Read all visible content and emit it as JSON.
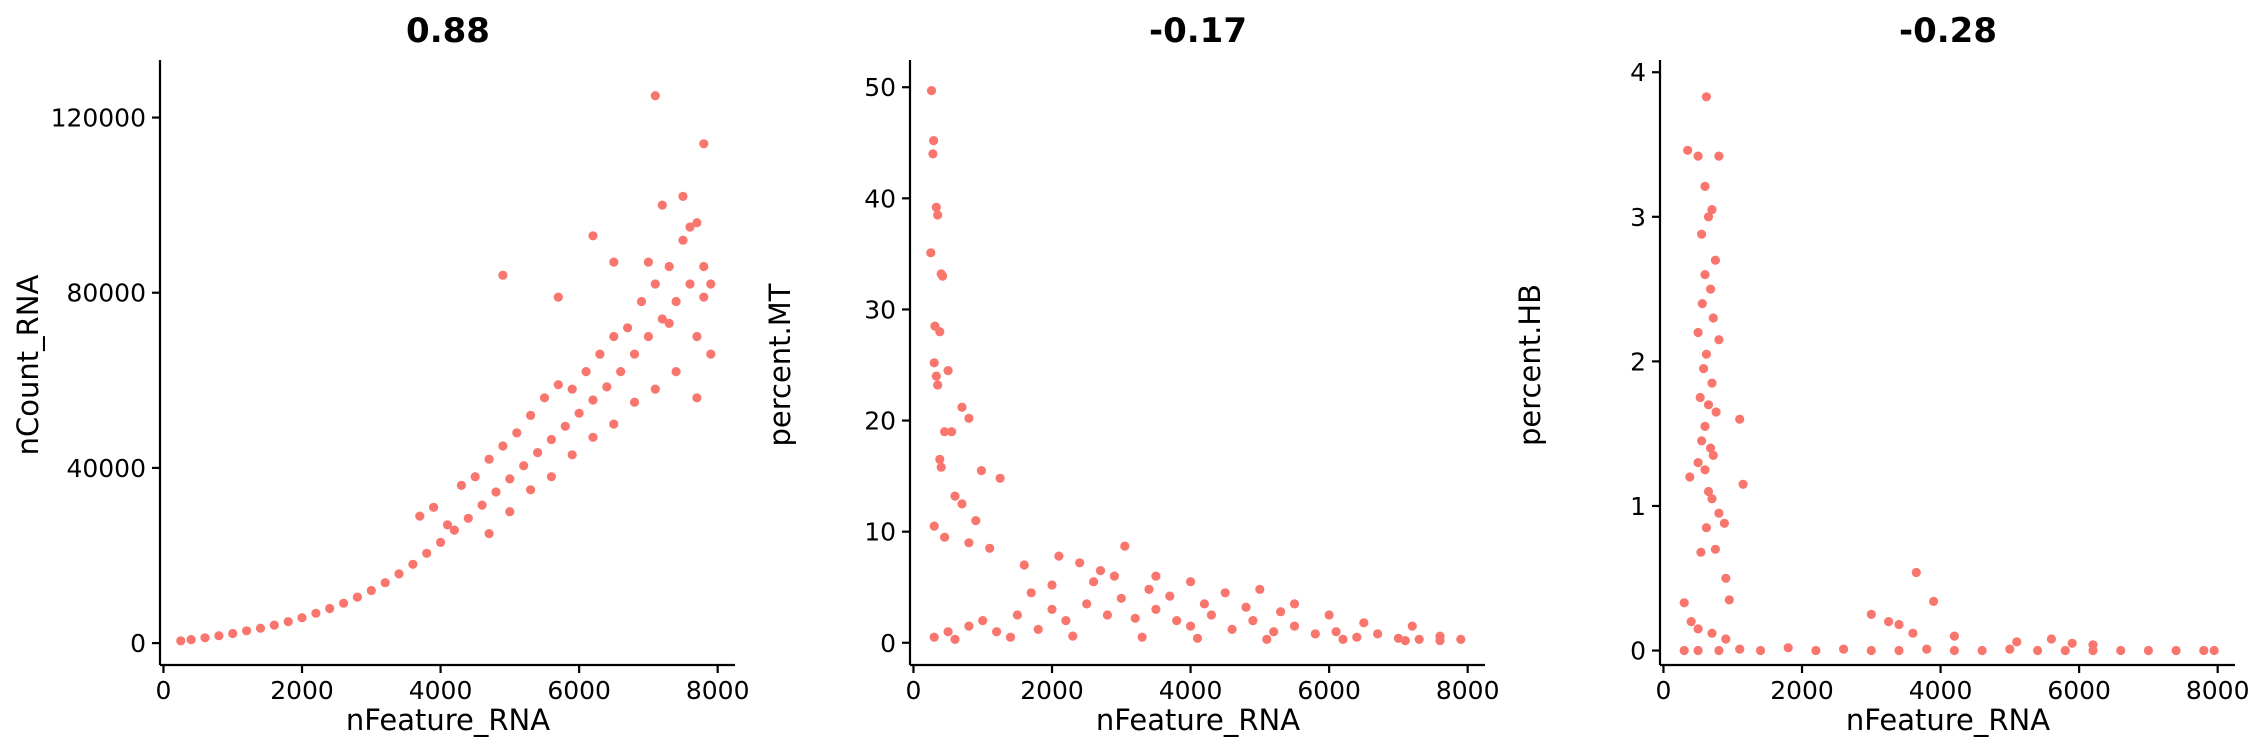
{
  "figure": {
    "point_color": "#F8766D"
  },
  "chart_data": [
    {
      "type": "scatter",
      "title": "0.88",
      "xlabel": "nFeature_RNA",
      "ylabel": "nCount_RNA",
      "xlim": [
        -50,
        8250
      ],
      "ylim": [
        -5000,
        132000
      ],
      "xticks": [
        0,
        2000,
        4000,
        6000,
        8000
      ],
      "yticks": [
        0,
        40000,
        80000,
        120000
      ],
      "series": [
        {
          "color": "#F8766D",
          "points": [
            [
              250,
              500
            ],
            [
              400,
              800
            ],
            [
              600,
              1200
            ],
            [
              800,
              1700
            ],
            [
              1000,
              2200
            ],
            [
              1200,
              2800
            ],
            [
              1400,
              3400
            ],
            [
              1600,
              4100
            ],
            [
              1800,
              4900
            ],
            [
              2000,
              5800
            ],
            [
              2200,
              6800
            ],
            [
              2400,
              7900
            ],
            [
              2600,
              9100
            ],
            [
              2800,
              10500
            ],
            [
              3000,
              12000
            ],
            [
              3200,
              13800
            ],
            [
              3400,
              15800
            ],
            [
              3600,
              18000
            ],
            [
              3800,
              20500
            ],
            [
              4000,
              23000
            ],
            [
              4200,
              25800
            ],
            [
              4400,
              28500
            ],
            [
              4600,
              31500
            ],
            [
              4800,
              34500
            ],
            [
              5000,
              37500
            ],
            [
              5200,
              40500
            ],
            [
              5400,
              43500
            ],
            [
              5600,
              46500
            ],
            [
              5800,
              49500
            ],
            [
              6000,
              52500
            ],
            [
              6200,
              55500
            ],
            [
              6400,
              58500
            ],
            [
              6600,
              62000
            ],
            [
              6800,
              66000
            ],
            [
              7000,
              70000
            ],
            [
              7200,
              74000
            ],
            [
              7400,
              78000
            ],
            [
              7600,
              82000
            ],
            [
              7800,
              86000
            ],
            [
              3700,
              29000
            ],
            [
              3900,
              31000
            ],
            [
              4100,
              27000
            ],
            [
              4300,
              36000
            ],
            [
              4500,
              38000
            ],
            [
              4700,
              42000
            ],
            [
              4900,
              45000
            ],
            [
              5100,
              48000
            ],
            [
              5300,
              52000
            ],
            [
              5500,
              56000
            ],
            [
              5700,
              59000
            ],
            [
              5900,
              58000
            ],
            [
              6100,
              62000
            ],
            [
              6300,
              66000
            ],
            [
              6500,
              70000
            ],
            [
              6700,
              72000
            ],
            [
              6900,
              78000
            ],
            [
              7100,
              82000
            ],
            [
              7300,
              86000
            ],
            [
              7500,
              92000
            ],
            [
              7700,
              96000
            ],
            [
              4700,
              25000
            ],
            [
              5000,
              30000
            ],
            [
              5300,
              35000
            ],
            [
              5600,
              38000
            ],
            [
              5900,
              43000
            ],
            [
              6200,
              47000
            ],
            [
              6500,
              50000
            ],
            [
              6800,
              55000
            ],
            [
              7100,
              58000
            ],
            [
              7400,
              62000
            ],
            [
              7700,
              56000
            ],
            [
              4900,
              84000
            ],
            [
              5700,
              79000
            ],
            [
              6200,
              93000
            ],
            [
              7100,
              125000
            ],
            [
              7000,
              87000
            ],
            [
              7200,
              100000
            ],
            [
              7500,
              102000
            ],
            [
              7800,
              114000
            ],
            [
              7600,
              95000
            ],
            [
              7900,
              82000
            ],
            [
              6500,
              87000
            ],
            [
              7300,
              73000
            ],
            [
              7700,
              70000
            ],
            [
              7900,
              66000
            ],
            [
              7800,
              79000
            ]
          ]
        }
      ]
    },
    {
      "type": "scatter",
      "title": "-0.17",
      "xlabel": "nFeature_RNA",
      "ylabel": "percent.MT",
      "xlim": [
        -50,
        8250
      ],
      "ylim": [
        -2,
        52
      ],
      "xticks": [
        0,
        2000,
        4000,
        6000,
        8000
      ],
      "yticks": [
        0,
        10,
        20,
        30,
        40,
        50
      ],
      "series": [
        {
          "color": "#F8766D",
          "points": [
            [
              260,
              49.7
            ],
            [
              290,
              45.2
            ],
            [
              280,
              44.0
            ],
            [
              330,
              39.2
            ],
            [
              350,
              38.5
            ],
            [
              250,
              35.1
            ],
            [
              400,
              33.2
            ],
            [
              420,
              33.0
            ],
            [
              310,
              28.5
            ],
            [
              380,
              28.0
            ],
            [
              300,
              25.2
            ],
            [
              330,
              24.0
            ],
            [
              350,
              23.2
            ],
            [
              500,
              24.5
            ],
            [
              700,
              21.2
            ],
            [
              550,
              19.0
            ],
            [
              800,
              20.2
            ],
            [
              450,
              19.0
            ],
            [
              380,
              16.5
            ],
            [
              400,
              15.8
            ],
            [
              980,
              15.5
            ],
            [
              600,
              13.2
            ],
            [
              1250,
              14.8
            ],
            [
              700,
              12.5
            ],
            [
              900,
              11.0
            ],
            [
              300,
              10.5
            ],
            [
              450,
              9.5
            ],
            [
              800,
              9.0
            ],
            [
              1100,
              8.5
            ],
            [
              1600,
              7.0
            ],
            [
              2100,
              7.8
            ],
            [
              2400,
              7.2
            ],
            [
              3050,
              8.7
            ],
            [
              2700,
              6.5
            ],
            [
              3500,
              6.0
            ],
            [
              4000,
              5.5
            ],
            [
              4500,
              4.5
            ],
            [
              5000,
              4.8
            ],
            [
              5500,
              3.5
            ],
            [
              6000,
              2.5
            ],
            [
              6500,
              1.8
            ],
            [
              7200,
              1.5
            ],
            [
              7600,
              0.6
            ],
            [
              7900,
              0.3
            ],
            [
              300,
              0.5
            ],
            [
              500,
              1.0
            ],
            [
              800,
              1.5
            ],
            [
              1000,
              2.0
            ],
            [
              1200,
              1.0
            ],
            [
              1500,
              2.5
            ],
            [
              1800,
              1.2
            ],
            [
              2000,
              3.0
            ],
            [
              2200,
              2.0
            ],
            [
              2500,
              3.5
            ],
            [
              2800,
              2.5
            ],
            [
              3000,
              4.0
            ],
            [
              3200,
              2.2
            ],
            [
              3500,
              3.0
            ],
            [
              3800,
              2.0
            ],
            [
              4000,
              1.5
            ],
            [
              4300,
              2.5
            ],
            [
              4600,
              1.2
            ],
            [
              4900,
              2.0
            ],
            [
              5200,
              1.0
            ],
            [
              5500,
              1.5
            ],
            [
              5800,
              0.8
            ],
            [
              6100,
              1.0
            ],
            [
              6400,
              0.5
            ],
            [
              6700,
              0.8
            ],
            [
              7000,
              0.4
            ],
            [
              7300,
              0.3
            ],
            [
              7600,
              0.2
            ],
            [
              600,
              0.3
            ],
            [
              1400,
              0.5
            ],
            [
              2300,
              0.6
            ],
            [
              3300,
              0.5
            ],
            [
              4100,
              0.4
            ],
            [
              5100,
              0.3
            ],
            [
              6200,
              0.3
            ],
            [
              7100,
              0.2
            ],
            [
              1700,
              4.5
            ],
            [
              2600,
              5.5
            ],
            [
              3400,
              4.8
            ],
            [
              4200,
              3.5
            ],
            [
              4800,
              3.2
            ],
            [
              5300,
              2.8
            ],
            [
              3700,
              4.2
            ],
            [
              2900,
              6.0
            ],
            [
              2000,
              5.2
            ]
          ]
        }
      ]
    },
    {
      "type": "scatter",
      "title": "-0.28",
      "xlabel": "nFeature_RNA",
      "ylabel": "percent.HB",
      "xlim": [
        -50,
        8250
      ],
      "ylim": [
        -0.1,
        4.05
      ],
      "xticks": [
        0,
        2000,
        4000,
        6000,
        8000
      ],
      "yticks": [
        0,
        1,
        2,
        3,
        4
      ],
      "series": [
        {
          "color": "#F8766D",
          "points": [
            [
              620,
              3.83
            ],
            [
              350,
              3.46
            ],
            [
              500,
              3.42
            ],
            [
              800,
              3.42
            ],
            [
              600,
              3.21
            ],
            [
              700,
              3.05
            ],
            [
              650,
              3.0
            ],
            [
              550,
              2.88
            ],
            [
              750,
              2.7
            ],
            [
              600,
              2.6
            ],
            [
              680,
              2.5
            ],
            [
              560,
              2.4
            ],
            [
              720,
              2.3
            ],
            [
              500,
              2.2
            ],
            [
              800,
              2.15
            ],
            [
              620,
              2.05
            ],
            [
              580,
              1.95
            ],
            [
              700,
              1.85
            ],
            [
              530,
              1.75
            ],
            [
              650,
              1.7
            ],
            [
              760,
              1.65
            ],
            [
              600,
              1.55
            ],
            [
              1100,
              1.6
            ],
            [
              550,
              1.45
            ],
            [
              680,
              1.4
            ],
            [
              720,
              1.35
            ],
            [
              500,
              1.3
            ],
            [
              600,
              1.25
            ],
            [
              380,
              1.2
            ],
            [
              650,
              1.1
            ],
            [
              700,
              1.05
            ],
            [
              1150,
              1.15
            ],
            [
              800,
              0.95
            ],
            [
              880,
              0.88
            ],
            [
              620,
              0.85
            ],
            [
              750,
              0.7
            ],
            [
              540,
              0.68
            ],
            [
              900,
              0.5
            ],
            [
              950,
              0.35
            ],
            [
              300,
              0.33
            ],
            [
              400,
              0.2
            ],
            [
              500,
              0.15
            ],
            [
              700,
              0.12
            ],
            [
              900,
              0.08
            ],
            [
              3650,
              0.54
            ],
            [
              3900,
              0.34
            ],
            [
              3000,
              0.25
            ],
            [
              3250,
              0.2
            ],
            [
              3400,
              0.18
            ],
            [
              3600,
              0.12
            ],
            [
              4200,
              0.1
            ],
            [
              5100,
              0.06
            ],
            [
              5600,
              0.08
            ],
            [
              5900,
              0.05
            ],
            [
              6200,
              0.04
            ],
            [
              300,
              0
            ],
            [
              500,
              0
            ],
            [
              800,
              0
            ],
            [
              1100,
              0.01
            ],
            [
              1400,
              0
            ],
            [
              1800,
              0.02
            ],
            [
              2200,
              0
            ],
            [
              2600,
              0.01
            ],
            [
              3000,
              0
            ],
            [
              3400,
              0
            ],
            [
              3800,
              0.01
            ],
            [
              4200,
              0
            ],
            [
              4600,
              0
            ],
            [
              5000,
              0.01
            ],
            [
              5400,
              0
            ],
            [
              5800,
              0
            ],
            [
              6200,
              0
            ],
            [
              6600,
              0
            ],
            [
              7000,
              0
            ],
            [
              7400,
              0
            ],
            [
              7800,
              0
            ],
            [
              7950,
              0
            ]
          ]
        }
      ]
    }
  ]
}
